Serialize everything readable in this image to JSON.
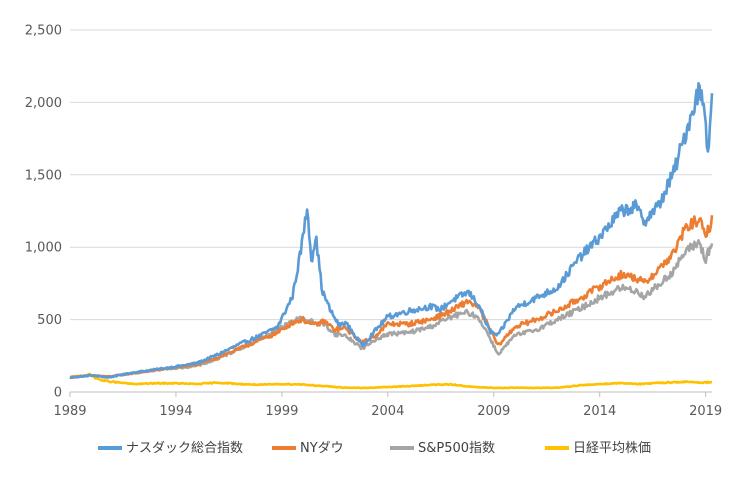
{
  "chart_data": {
    "type": "line",
    "title": "",
    "xlabel": "",
    "ylabel": "",
    "xlim": [
      1989,
      2019.3
    ],
    "ylim": [
      0,
      2500
    ],
    "x_ticks": [
      1989,
      1994,
      1999,
      2004,
      2009,
      2014,
      2019
    ],
    "x_tick_labels": [
      "1989",
      "1994",
      "1999",
      "2004",
      "2009",
      "2014",
      "2019"
    ],
    "y_ticks": [
      0,
      500,
      1000,
      1500,
      2000,
      2500
    ],
    "y_tick_labels": [
      "0",
      "500",
      "1,000",
      "1,500",
      "2,000",
      "2,500"
    ],
    "grid": true,
    "legend_position": "bottom",
    "series": [
      {
        "name": "ナスダック総合指数",
        "color": "#5B9BD5",
        "x": [
          1989,
          1990,
          1990.8,
          1992,
          1993,
          1994,
          1995,
          1996,
          1997,
          1998,
          1998.8,
          1999.5,
          1999.9,
          2000.2,
          2000.4,
          2000.6,
          2000.9,
          2001.3,
          2001.7,
          2002,
          2002.8,
          2003.5,
          2004,
          2005,
          2006,
          2006.5,
          2007,
          2007.8,
          2008.3,
          2008.8,
          2009.2,
          2010,
          2011,
          2012,
          2013,
          2014,
          2015,
          2015.7,
          2016.1,
          2016.8,
          2017.5,
          2018.0,
          2018.7,
          2019.0,
          2019.1,
          2019.3
        ],
        "values": [
          100,
          115,
          100,
          135,
          155,
          175,
          200,
          260,
          330,
          390,
          450,
          660,
          980,
          1280,
          900,
          1080,
          700,
          560,
          460,
          480,
          320,
          440,
          520,
          560,
          590,
          570,
          630,
          690,
          600,
          420,
          390,
          580,
          650,
          720,
          920,
          1070,
          1250,
          1280,
          1180,
          1290,
          1520,
          1760,
          2100,
          1920,
          1620,
          2080
        ]
      },
      {
        "name": "NYダウ",
        "color": "#ED7D31",
        "x": [
          1989,
          1990,
          1990.8,
          1992,
          1993,
          1994,
          1995,
          1996,
          1997,
          1998,
          1998.8,
          1999.5,
          2000,
          2000.5,
          2001,
          2001.5,
          2002,
          2002.8,
          2003.5,
          2004,
          2005,
          2006,
          2007,
          2007.8,
          2008.3,
          2008.8,
          2009.2,
          2010,
          2011,
          2012,
          2013,
          2014,
          2015,
          2015.7,
          2016.1,
          2016.8,
          2017.5,
          2018.0,
          2018.7,
          2019.0,
          2019.1,
          2019.3
        ],
        "values": [
          100,
          115,
          105,
          130,
          150,
          170,
          190,
          240,
          300,
          360,
          410,
          480,
          500,
          460,
          490,
          430,
          440,
          340,
          400,
          470,
          470,
          500,
          560,
          630,
          580,
          440,
          320,
          450,
          500,
          560,
          640,
          730,
          810,
          790,
          750,
          850,
          960,
          1120,
          1200,
          1050,
          1120,
          1180
        ]
      },
      {
        "name": "S&P500指数",
        "color": "#A5A5A5",
        "x": [
          1989,
          1990,
          1990.8,
          1992,
          1993,
          1994,
          1995,
          1996,
          1997,
          1998,
          1998.8,
          1999.5,
          2000,
          2000.5,
          2001,
          2001.5,
          2002,
          2002.8,
          2003.5,
          2004,
          2005,
          2006,
          2007,
          2007.8,
          2008.3,
          2008.8,
          2009.2,
          2010,
          2011,
          2012,
          2013,
          2014,
          2015,
          2015.7,
          2016.1,
          2016.8,
          2017.5,
          2018.0,
          2018.7,
          2019.0,
          2019.1,
          2019.3
        ],
        "values": [
          100,
          115,
          105,
          130,
          150,
          165,
          180,
          230,
          300,
          370,
          430,
          490,
          510,
          480,
          470,
          400,
          390,
          300,
          370,
          400,
          410,
          450,
          520,
          550,
          510,
          380,
          260,
          390,
          430,
          500,
          570,
          650,
          720,
          700,
          660,
          740,
          840,
          960,
          1040,
          900,
          960,
          1020
        ]
      },
      {
        "name": "日経平均株価",
        "color": "#FFC000",
        "x": [
          1989,
          1989.9,
          1990.5,
          1991,
          1992,
          1993,
          1994,
          1995,
          1996,
          1997,
          1998,
          1999,
          2000,
          2001,
          2002,
          2003,
          2004,
          2005,
          2006,
          2007,
          2008,
          2009,
          2010,
          2011,
          2012,
          2013,
          2014,
          2015,
          2016,
          2017,
          2018,
          2019,
          2019.3
        ],
        "values": [
          100,
          120,
          80,
          70,
          55,
          60,
          60,
          55,
          65,
          55,
          50,
          55,
          52,
          40,
          30,
          28,
          35,
          40,
          50,
          52,
          35,
          28,
          30,
          28,
          30,
          45,
          55,
          62,
          55,
          65,
          70,
          65,
          70
        ]
      }
    ]
  }
}
